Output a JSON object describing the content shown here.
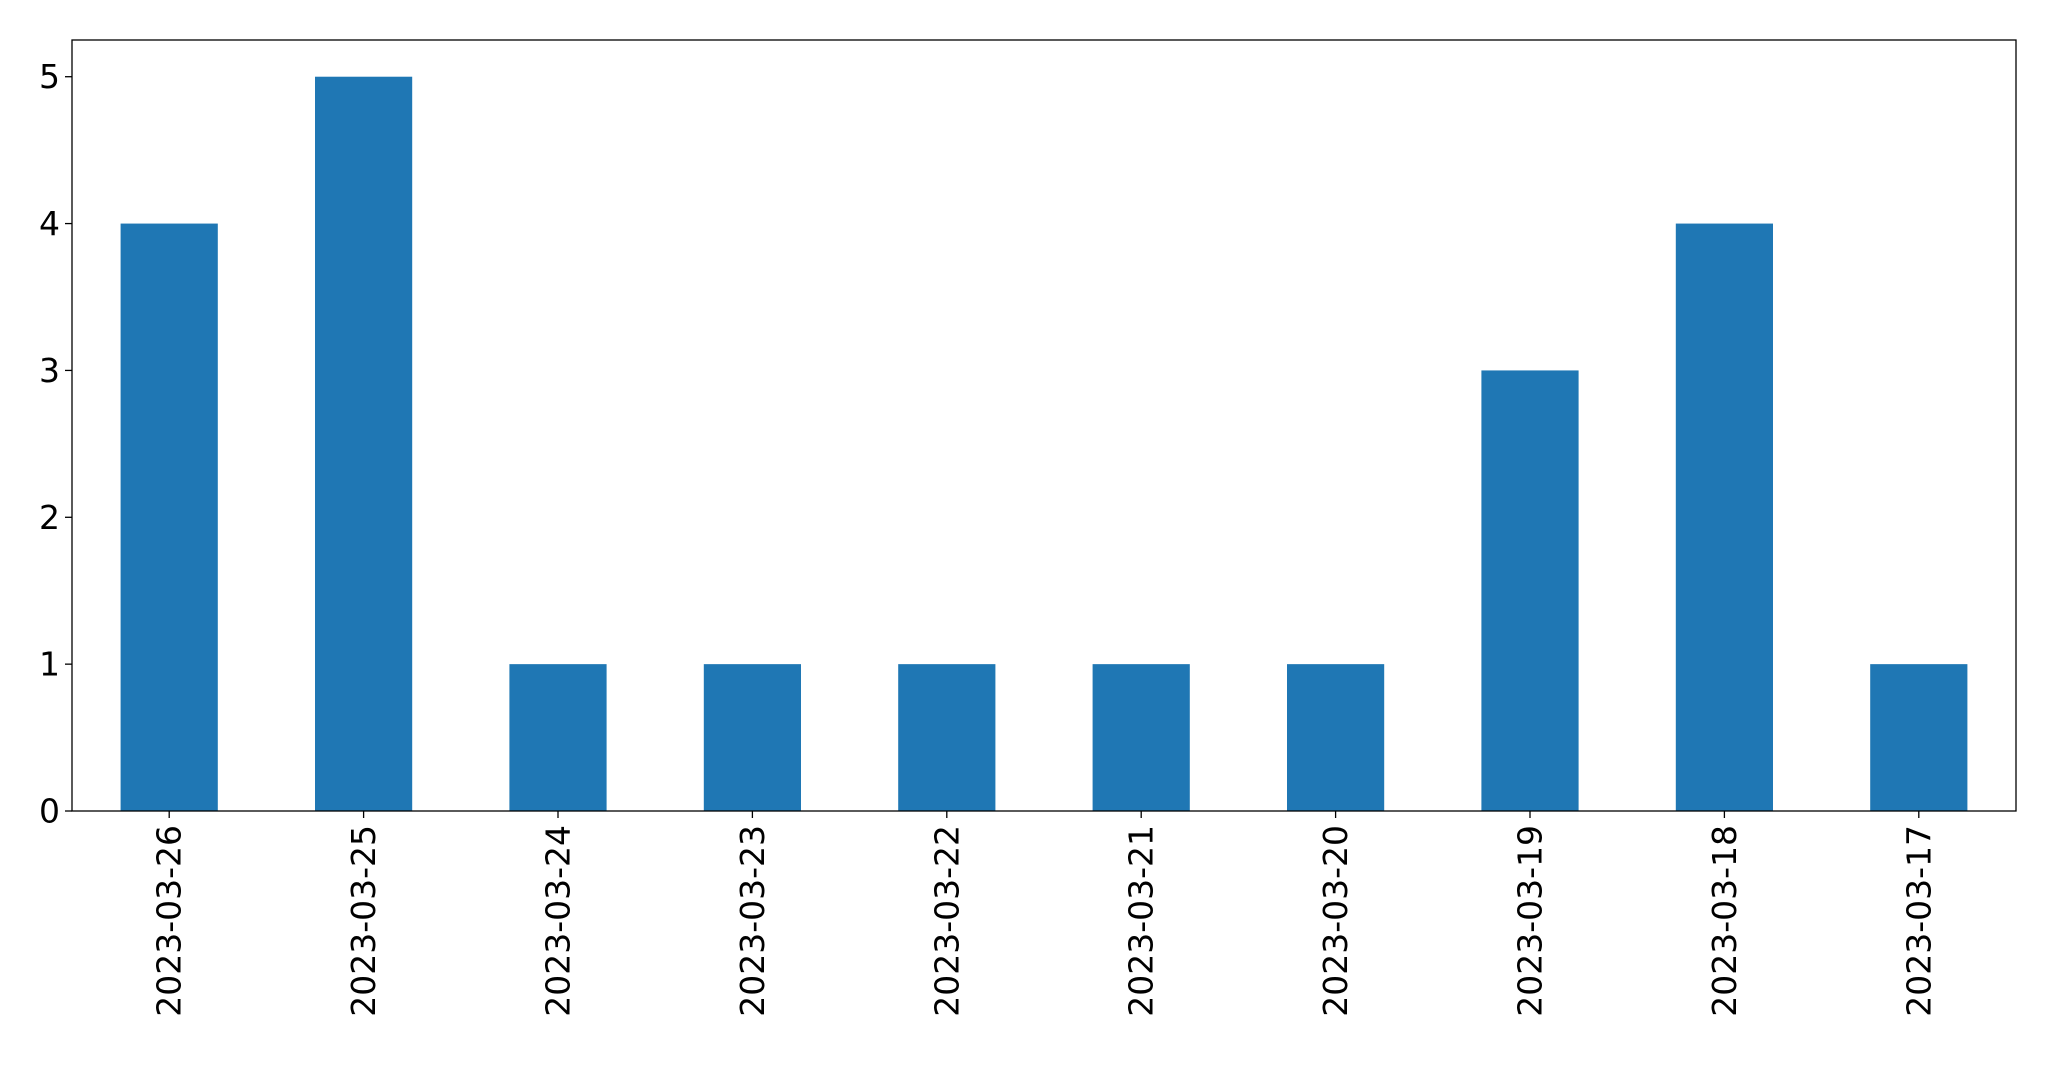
{
  "chart_data": {
    "type": "bar",
    "title": "",
    "xlabel": "",
    "ylabel": "",
    "categories": [
      "2023-03-26",
      "2023-03-25",
      "2023-03-24",
      "2023-03-23",
      "2023-03-22",
      "2023-03-21",
      "2023-03-20",
      "2023-03-19",
      "2023-03-18",
      "2023-03-17"
    ],
    "values": [
      4,
      5,
      1,
      1,
      1,
      1,
      1,
      3,
      4,
      1
    ],
    "ylim": [
      0,
      5.25
    ],
    "yticks": [
      0,
      1,
      2,
      3,
      4,
      5
    ],
    "grid": false,
    "legend": false,
    "bar_color": "#1f77b4",
    "x_tick_rotation": "vertical"
  }
}
